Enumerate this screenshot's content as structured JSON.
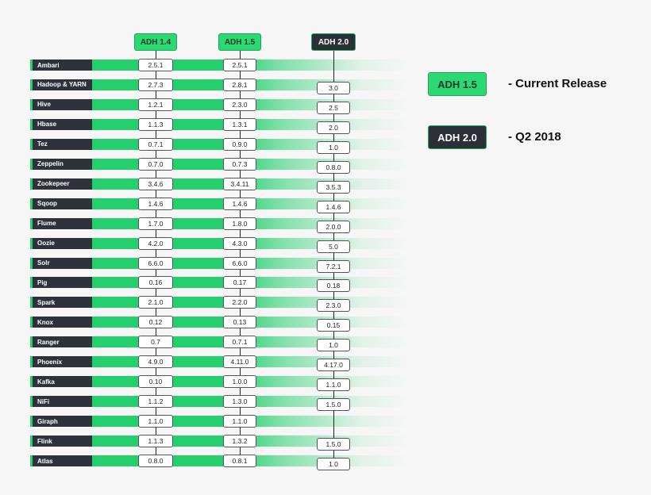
{
  "columns": [
    {
      "label": "ADH 1.4",
      "style": "green"
    },
    {
      "label": "ADH 1.5",
      "style": "green"
    },
    {
      "label": "ADH 2.0",
      "style": "dark"
    }
  ],
  "rows": [
    {
      "name": "Ambari",
      "versions": [
        "2.5.1",
        "2.5.1",
        ""
      ]
    },
    {
      "name": "Hadoop & YARN",
      "versions": [
        "2.7.3",
        "2.8.1",
        "3.0"
      ]
    },
    {
      "name": "Hive",
      "versions": [
        "1.2.1",
        "2.3.0",
        "2.5"
      ]
    },
    {
      "name": "Hbase",
      "versions": [
        "1.1.3",
        "1.3.1",
        "2.0"
      ]
    },
    {
      "name": "Tez",
      "versions": [
        "0.7.1",
        "0.9.0",
        "1.0"
      ]
    },
    {
      "name": "Zeppelin",
      "versions": [
        "0.7.0",
        "0.7.3",
        "0.8.0"
      ]
    },
    {
      "name": "Zookepeer",
      "versions": [
        "3.4.6",
        "3.4.11",
        "3.5.3"
      ]
    },
    {
      "name": "Sqoop",
      "versions": [
        "1.4.6",
        "1.4.6",
        "1.4.6"
      ]
    },
    {
      "name": "Flume",
      "versions": [
        "1.7.0",
        "1.8.0",
        "2.0.0"
      ]
    },
    {
      "name": "Oozie",
      "versions": [
        "4.2.0",
        "4.3.0",
        "5.0"
      ]
    },
    {
      "name": "Solr",
      "versions": [
        "6.6.0",
        "6.6.0",
        "7.2.1"
      ]
    },
    {
      "name": "Pig",
      "versions": [
        "0.16",
        "0.17",
        "0.18"
      ]
    },
    {
      "name": "Spark",
      "versions": [
        "2.1.0",
        "2.2.0",
        "2.3.0"
      ]
    },
    {
      "name": "Knox",
      "versions": [
        "0.12",
        "0.13",
        "0.15"
      ]
    },
    {
      "name": "Ranger",
      "versions": [
        "0.7",
        "0.7.1",
        "1.0"
      ]
    },
    {
      "name": "Phoenix",
      "versions": [
        "4.9.0",
        "4.11.0",
        "4.17.0"
      ]
    },
    {
      "name": "Kafka",
      "versions": [
        "0.10",
        "1.0.0",
        "1.1.0"
      ]
    },
    {
      "name": "NiFi",
      "versions": [
        "1.1.2",
        "1.3.0",
        "1.5.0"
      ]
    },
    {
      "name": "Giraph",
      "versions": [
        "1.1.0",
        "1.1.0",
        ""
      ]
    },
    {
      "name": "Flink",
      "versions": [
        "1.1.3",
        "1.3.2",
        "1.5.0"
      ]
    },
    {
      "name": "Atlas",
      "versions": [
        "0.8.0",
        "0.8.1",
        "1.0"
      ]
    }
  ],
  "legend": [
    {
      "label": "ADH 1.5",
      "text": "- Current Release",
      "style": "green"
    },
    {
      "label": "ADH 2.0",
      "text": "- Q2 2018",
      "style": "dark"
    }
  ],
  "colors": {
    "green": "#2bd872",
    "dark": "#2b3038",
    "band": "#25cf6e"
  }
}
